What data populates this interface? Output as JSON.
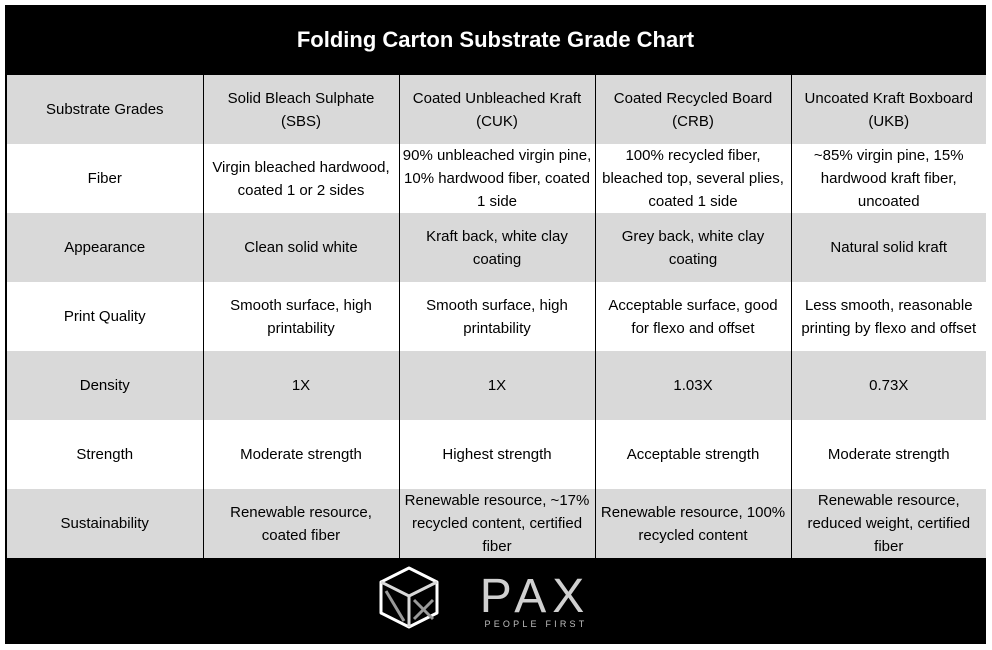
{
  "title": "Folding Carton Substrate Grade Chart",
  "table": {
    "header": [
      "Substrate Grades",
      "Solid Bleach Sulphate (SBS)",
      "Coated Unbleached Kraft (CUK)",
      "Coated Recycled Board (CRB)",
      "Uncoated Kraft Boxboard (UKB)"
    ],
    "rows": [
      [
        "Fiber",
        "Virgin bleached hardwood, coated 1 or 2 sides",
        "90% unbleached virgin pine, 10% hardwood fiber, coated 1 side",
        "100% recycled fiber, bleached top, several plies, coated 1 side",
        "~85% virgin pine, 15% hardwood kraft fiber, uncoated"
      ],
      [
        "Appearance",
        "Clean solid white",
        "Kraft back, white clay coating",
        "Grey back, white clay coating",
        "Natural solid kraft"
      ],
      [
        "Print Quality",
        "Smooth surface, high printability",
        "Smooth surface, high printability",
        "Acceptable surface, good for flexo and offset",
        "Less smooth, reasonable printing by flexo and offset"
      ],
      [
        "Density",
        "1X",
        "1X",
        "1.03X",
        "0.73X"
      ],
      [
        "Strength",
        "Moderate strength",
        "Highest strength",
        "Acceptable strength",
        "Moderate strength"
      ],
      [
        "Sustainability",
        "Renewable resource, coated fiber",
        "Renewable resource, ~17% recycled content, certified fiber",
        "Renewable resource, 100% recycled content",
        "Renewable resource, reduced weight, certified fiber"
      ]
    ]
  },
  "logo": {
    "icon": "pax-cube-logo-icon",
    "wordmark": "PAX",
    "tagline": "PEOPLE FIRST"
  }
}
